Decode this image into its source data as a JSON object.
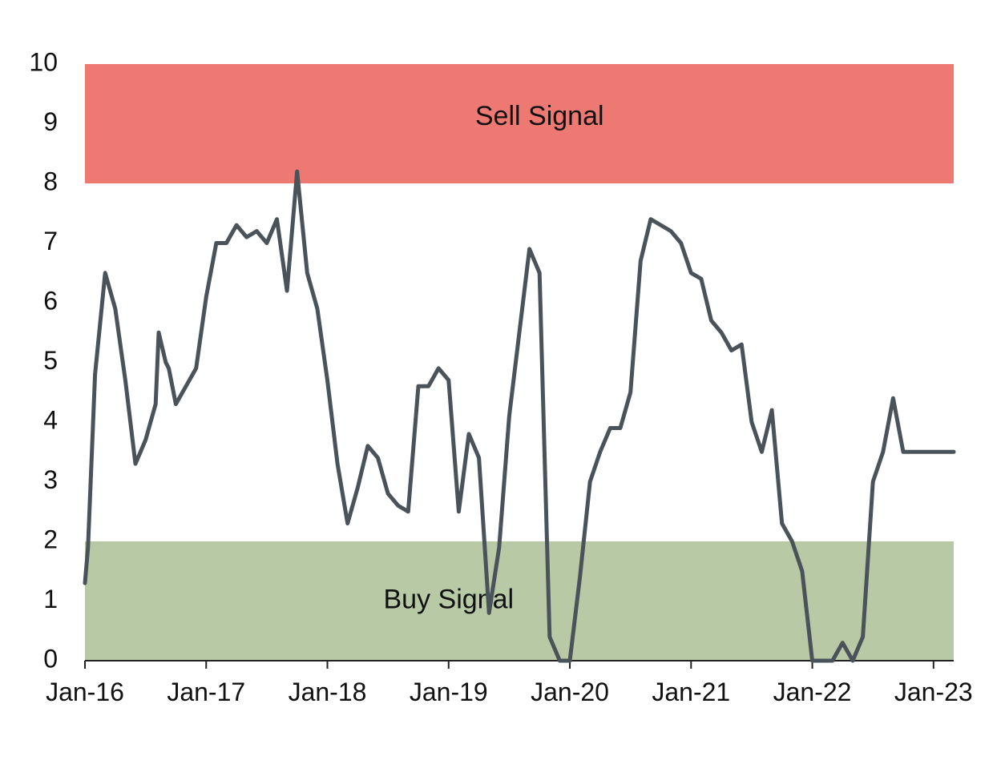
{
  "chart_data": {
    "type": "line",
    "title": "",
    "xlabel": "",
    "ylabel": "",
    "ylim": [
      0,
      10
    ],
    "xlim": [
      "2016-01",
      "2023-03"
    ],
    "yticks": [
      0,
      1,
      2,
      3,
      4,
      5,
      6,
      7,
      8,
      9,
      10
    ],
    "xticks": [
      {
        "date": "2016-01",
        "label": "Jan-16"
      },
      {
        "date": "2017-01",
        "label": "Jan-17"
      },
      {
        "date": "2018-01",
        "label": "Jan-18"
      },
      {
        "date": "2019-01",
        "label": "Jan-19"
      },
      {
        "date": "2020-01",
        "label": "Jan-20"
      },
      {
        "date": "2021-01",
        "label": "Jan-21"
      },
      {
        "date": "2022-01",
        "label": "Jan-22"
      },
      {
        "date": "2023-01",
        "label": "Jan-23"
      }
    ],
    "bands": [
      {
        "label": "Sell Signal",
        "from": 8,
        "to": 10,
        "color": "#EE7872",
        "label_at": [
          "2019-10",
          9.1
        ]
      },
      {
        "label": "Buy Signal",
        "from": 0,
        "to": 2,
        "color": "#B8C9A6",
        "label_at": [
          "2019-01",
          1.0
        ]
      }
    ],
    "line_color": "#4A535A",
    "grid": false,
    "legend": "none",
    "series": [
      {
        "x": [
          "2016-01",
          "2016-01",
          "2016-02",
          "2016-03",
          "2016-04",
          "2016-05",
          "2016-06",
          "2016-07",
          "2016-08",
          "2016-08",
          "2016-09",
          "2016-09",
          "2016-10",
          "2016-11",
          "2016-12",
          "2017-01",
          "2017-02",
          "2017-03",
          "2017-04",
          "2017-05",
          "2017-06",
          "2017-07",
          "2017-08",
          "2017-09",
          "2017-10",
          "2017-11",
          "2017-12",
          "2018-01",
          "2018-02",
          "2018-03",
          "2018-04",
          "2018-05",
          "2018-06",
          "2018-07",
          "2018-08",
          "2018-09",
          "2018-10",
          "2018-11",
          "2018-12",
          "2019-01",
          "2019-02",
          "2019-03",
          "2019-04",
          "2019-05",
          "2019-06",
          "2019-07",
          "2019-08",
          "2019-09",
          "2019-10",
          "2019-11",
          "2019-12",
          "2020-01",
          "2020-02",
          "2020-03",
          "2020-04",
          "2020-05",
          "2020-06",
          "2020-07",
          "2020-08",
          "2020-09",
          "2020-10",
          "2020-11",
          "2020-12",
          "2021-01",
          "2021-02",
          "2021-03",
          "2021-04",
          "2021-05",
          "2021-06",
          "2021-07",
          "2021-08",
          "2021-09",
          "2021-10",
          "2021-11",
          "2021-12",
          "2022-01",
          "2022-02",
          "2022-03",
          "2022-04",
          "2022-05",
          "2022-06",
          "2022-07",
          "2022-08",
          "2022-09",
          "2022-10",
          "2022-11",
          "2022-12",
          "2023-01",
          "2023-02",
          "2023-03"
        ],
        "values": [
          1.3,
          1.9,
          4.8,
          6.5,
          5.9,
          4.7,
          3.3,
          3.7,
          4.3,
          5.5,
          5.0,
          4.9,
          4.3,
          4.6,
          4.9,
          6.1,
          7.0,
          7.0,
          7.3,
          7.1,
          7.2,
          7.0,
          7.4,
          6.2,
          8.2,
          6.5,
          5.9,
          4.7,
          3.3,
          2.3,
          2.9,
          3.6,
          3.4,
          2.8,
          2.6,
          2.5,
          4.6,
          4.6,
          4.9,
          4.7,
          2.5,
          3.8,
          3.4,
          0.8,
          1.9,
          4.1,
          5.5,
          6.9,
          6.5,
          0.4,
          0.0,
          0.0,
          1.4,
          3.0,
          3.5,
          3.9,
          3.9,
          4.5,
          6.7,
          7.4,
          7.3,
          7.2,
          7.0,
          6.5,
          6.4,
          5.7,
          5.5,
          5.2,
          5.3,
          4.0,
          3.5,
          4.2,
          2.3,
          2.0,
          1.5,
          0.0,
          0.0,
          0.0,
          0.3,
          0.0,
          0.4,
          3.0,
          3.5,
          4.4,
          3.5,
          3.5,
          3.5,
          3.5,
          3.5,
          3.5
        ]
      }
    ]
  }
}
